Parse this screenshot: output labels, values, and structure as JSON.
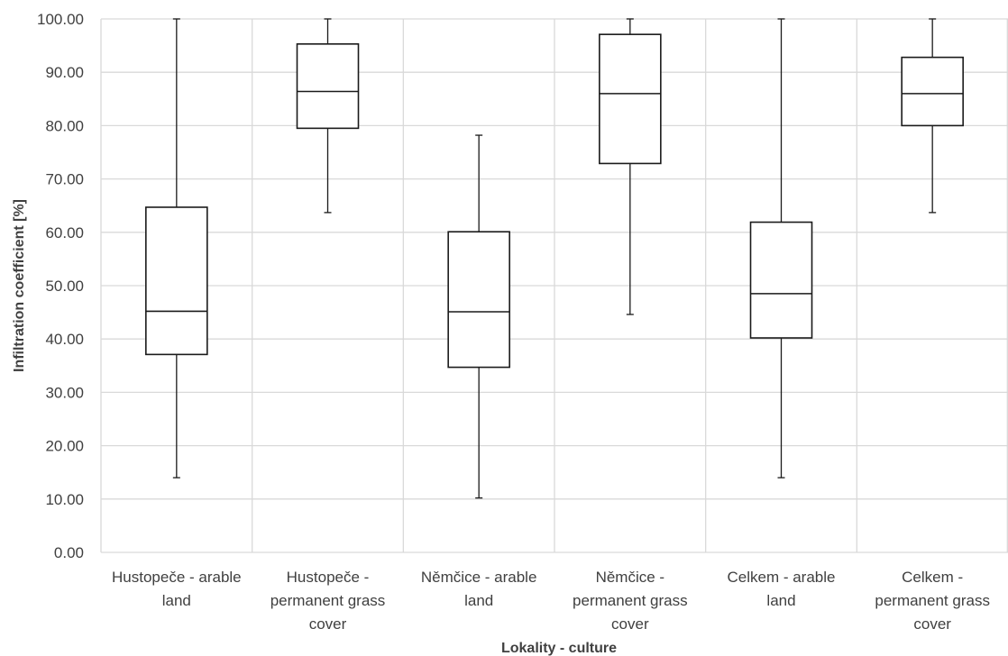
{
  "chart_data": {
    "type": "boxplot",
    "title": "",
    "xlabel": "Lokality - culture",
    "ylabel": "Infiltration coefficient [%]",
    "ylim": [
      0,
      100
    ],
    "yticks": [
      "0.00",
      "10.00",
      "20.00",
      "30.00",
      "40.00",
      "50.00",
      "60.00",
      "70.00",
      "80.00",
      "90.00",
      "100.00"
    ],
    "grid": "both",
    "categories": [
      {
        "lines": [
          "Hustopeče - arable",
          "land"
        ]
      },
      {
        "lines": [
          "Hustopeče -",
          "permanent grass",
          "cover"
        ]
      },
      {
        "lines": [
          "Němčice - arable",
          "land"
        ]
      },
      {
        "lines": [
          "Němčice -",
          "permanent grass",
          "cover"
        ]
      },
      {
        "lines": [
          "Celkem - arable",
          "land"
        ]
      },
      {
        "lines": [
          "Celkem -",
          "permanent grass",
          "cover"
        ]
      }
    ],
    "boxes": [
      {
        "min": 14.0,
        "q1": 37.1,
        "median": 45.2,
        "q3": 64.7,
        "max": 100.0
      },
      {
        "min": 63.7,
        "q1": 79.5,
        "median": 86.4,
        "q3": 95.3,
        "max": 100.0
      },
      {
        "min": 10.2,
        "q1": 34.7,
        "median": 45.1,
        "q3": 60.1,
        "max": 78.2
      },
      {
        "min": 44.6,
        "q1": 72.9,
        "median": 86.0,
        "q3": 97.1,
        "max": 100.0
      },
      {
        "min": 14.0,
        "q1": 40.2,
        "median": 48.5,
        "q3": 61.9,
        "max": 100.0
      },
      {
        "min": 63.7,
        "q1": 80.0,
        "median": 86.0,
        "q3": 92.8,
        "max": 100.0
      }
    ]
  }
}
